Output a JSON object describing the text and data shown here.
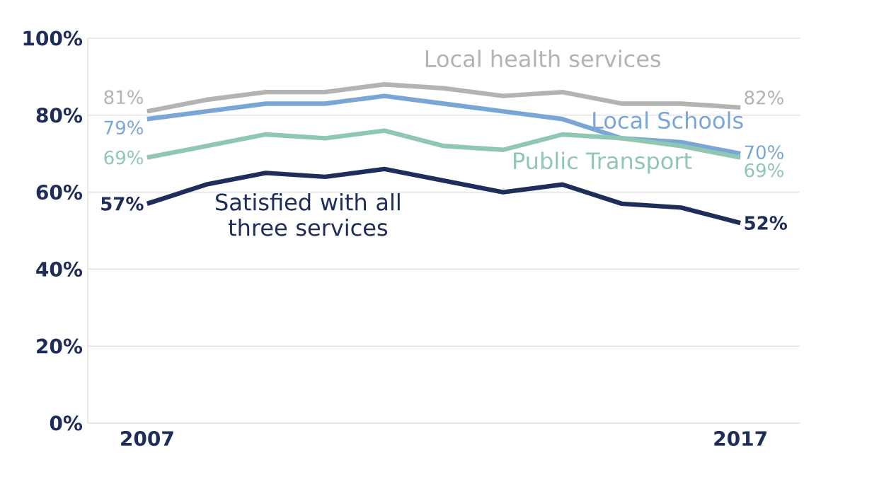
{
  "chart_data": {
    "type": "line",
    "x": [
      2007,
      2008,
      2009,
      2010,
      2011,
      2012,
      2013,
      2014,
      2015,
      2016,
      2017
    ],
    "series": [
      {
        "name": "Local health services",
        "color": "#b3b3b3",
        "values": [
          81,
          84,
          86,
          86,
          88,
          87,
          85,
          86,
          83,
          83,
          82
        ],
        "value_labels": [
          "81%",
          null,
          null,
          null,
          null,
          null,
          null,
          null,
          null,
          null,
          "82%"
        ]
      },
      {
        "name": "Local Schools",
        "color": "#7aa6d6",
        "values": [
          79,
          81,
          83,
          83,
          85,
          83,
          81,
          79,
          74,
          73,
          70
        ],
        "value_labels": [
          "79%",
          null,
          null,
          null,
          null,
          null,
          null,
          null,
          null,
          null,
          "70%"
        ]
      },
      {
        "name": "Public Transport",
        "color": "#8fc7b3",
        "values": [
          69,
          72,
          75,
          74,
          76,
          72,
          71,
          75,
          74,
          72,
          69
        ],
        "value_labels": [
          "69%",
          null,
          null,
          null,
          null,
          null,
          null,
          null,
          null,
          null,
          "69%"
        ]
      },
      {
        "name": "Satisfied with all three services",
        "color": "#1f2d5a",
        "values": [
          57,
          62,
          65,
          64,
          66,
          63,
          60,
          62,
          57,
          56,
          52
        ],
        "value_labels": [
          "57%",
          null,
          null,
          null,
          null,
          null,
          null,
          null,
          null,
          null,
          "52%"
        ]
      }
    ],
    "xlim": [
      2006,
      2018
    ],
    "ylim": [
      0,
      100
    ],
    "xticks": [
      2007,
      2017
    ],
    "yticks": [
      {
        "value": 0,
        "label": "0%"
      },
      {
        "value": 20,
        "label": "20%"
      },
      {
        "value": 40,
        "label": "40%"
      },
      {
        "value": 60,
        "label": "60%"
      },
      {
        "value": 80,
        "label": "80%"
      },
      {
        "value": 100,
        "label": "100%"
      }
    ],
    "grid": "y",
    "legend": false,
    "marker": "none",
    "line_style": "solid"
  }
}
